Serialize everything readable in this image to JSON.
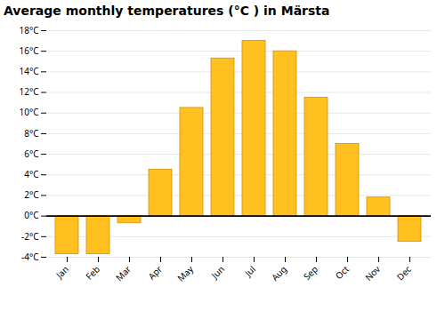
{
  "chart_data": {
    "type": "bar",
    "title": "Average monthly temperatures (°C ) in Märsta",
    "categories": [
      "Jan",
      "Feb",
      "Mar",
      "Apr",
      "May",
      "Jun",
      "Jul",
      "Aug",
      "Sep",
      "Oct",
      "Nov",
      "Dec"
    ],
    "values": [
      -3.7,
      -3.7,
      -0.7,
      4.5,
      10.5,
      15.3,
      17.0,
      16.0,
      11.5,
      7.0,
      1.8,
      -2.5
    ],
    "color": "#FFC020",
    "ylim": [
      -4,
      18
    ],
    "yticks": [
      {
        "value": -4,
        "label": "-4°C"
      },
      {
        "value": -2,
        "label": "-2°C"
      },
      {
        "value": 0,
        "label": "0°C"
      },
      {
        "value": 2,
        "label": "2°C"
      },
      {
        "value": 4,
        "label": "4°C"
      },
      {
        "value": 6,
        "label": "6°C"
      },
      {
        "value": 8,
        "label": "8°C"
      },
      {
        "value": 10,
        "label": "10°C"
      },
      {
        "value": 12,
        "label": "12°C"
      },
      {
        "value": 14,
        "label": "14°C"
      },
      {
        "value": 16,
        "label": "16°C"
      },
      {
        "value": 18,
        "label": "18°C"
      }
    ],
    "grid": true
  }
}
